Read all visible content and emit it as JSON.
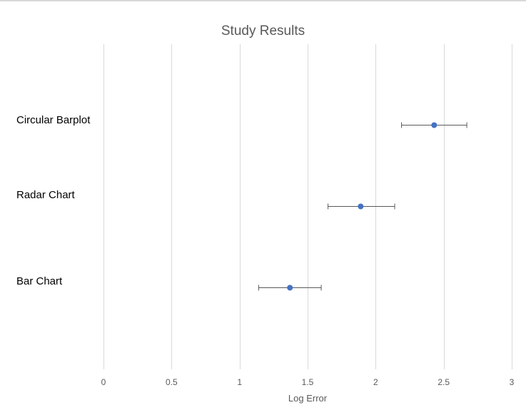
{
  "chart_data": {
    "type": "scatter",
    "title": "Study Results",
    "xlabel": "Log Error",
    "ylabel": "",
    "xlim": [
      0,
      3
    ],
    "x_ticks": [
      "0",
      "0.5",
      "1",
      "1.5",
      "2",
      "2.5",
      "3"
    ],
    "grid": true,
    "legend": "none",
    "categories": [
      "Circular Barplot",
      "Radar Chart",
      "Bar Chart"
    ],
    "points": [
      {
        "category": "Circular Barplot",
        "value": 2.43,
        "error_low": 2.19,
        "error_high": 2.67
      },
      {
        "category": "Radar Chart",
        "value": 1.89,
        "error_low": 1.65,
        "error_high": 2.14
      },
      {
        "category": "Bar Chart",
        "value": 1.37,
        "error_low": 1.14,
        "error_high": 1.6
      }
    ],
    "colors": {
      "marker": "#4472c4",
      "error_bar": "#595959",
      "gridline": "#d9d9d9",
      "text": "#595959"
    }
  }
}
